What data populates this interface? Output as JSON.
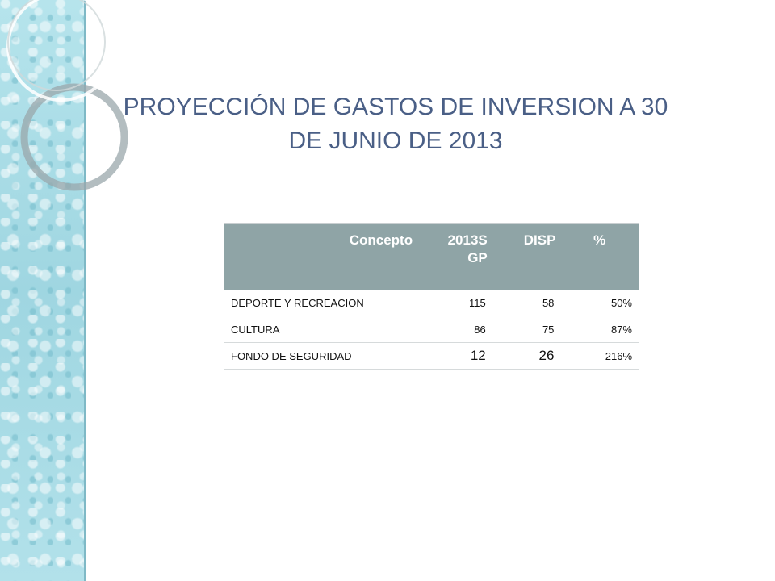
{
  "slide": {
    "title": "PROYECCIÓN DE GASTOS DE INVERSION A 30 DE JUNIO DE 2013"
  },
  "table": {
    "headers": [
      "Concepto",
      "2013S GP",
      "DISP",
      "%"
    ],
    "rows": [
      [
        "DEPORTE Y RECREACION",
        "115",
        "58",
        "50%"
      ],
      [
        "CULTURA",
        "86",
        "75",
        "87%"
      ],
      [
        "FONDO DE SEGURIDAD",
        "12",
        "26",
        "216%"
      ]
    ]
  },
  "colors": {
    "title": "#4a5f86",
    "header_bg": "#8fa4a6",
    "side_strip": "#a9dde6"
  }
}
